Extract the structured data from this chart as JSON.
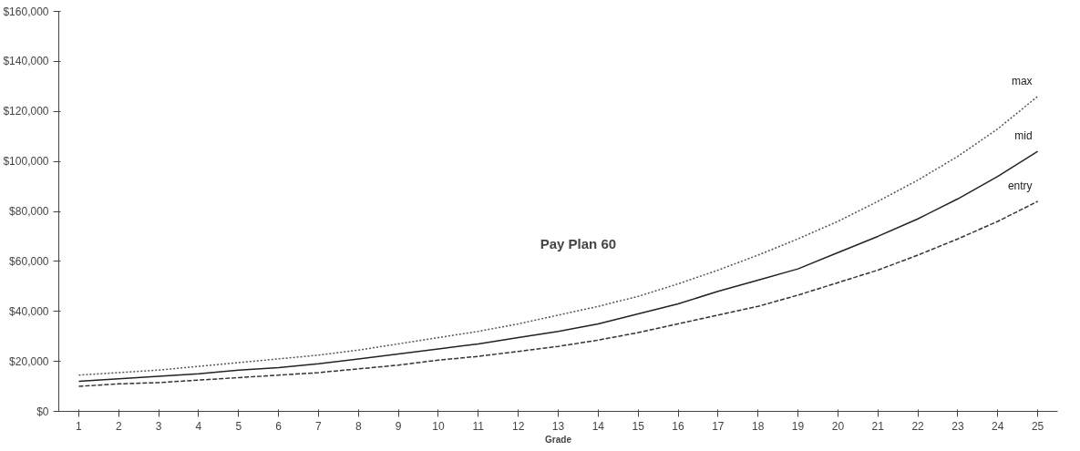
{
  "chart_data": {
    "type": "line",
    "xlabel": "Grade",
    "annotations": [
      "Pay Plan 60"
    ],
    "x": [
      1,
      2,
      3,
      4,
      5,
      6,
      7,
      8,
      9,
      10,
      11,
      12,
      13,
      14,
      15,
      16,
      17,
      18,
      19,
      20,
      21,
      22,
      23,
      24,
      25
    ],
    "xlim": [
      0.5,
      25.5
    ],
    "xticks": [
      1,
      2,
      3,
      4,
      5,
      6,
      7,
      8,
      9,
      10,
      11,
      12,
      13,
      14,
      15,
      16,
      17,
      18,
      19,
      20,
      21,
      22,
      23,
      24,
      25
    ],
    "series": [
      {
        "name": "max",
        "color": "#555555",
        "line_style": "dotted",
        "values": [
          14500,
          15500,
          16500,
          18000,
          19500,
          21000,
          22500,
          24500,
          27000,
          29500,
          32000,
          35000,
          38500,
          42000,
          46000,
          51000,
          56500,
          62500,
          69000,
          76000,
          84000,
          92500,
          102000,
          113000,
          126000
        ]
      },
      {
        "name": "mid",
        "color": "#222222",
        "line_style": "solid",
        "values": [
          12000,
          13000,
          14000,
          15000,
          16500,
          17500,
          19000,
          21000,
          23000,
          25000,
          27000,
          29500,
          32000,
          35000,
          39000,
          43000,
          48000,
          52500,
          57000,
          63500,
          70000,
          77000,
          85000,
          94000,
          104000
        ]
      },
      {
        "name": "entry",
        "color": "#333333",
        "line_style": "dashed",
        "values": [
          10000,
          11000,
          11500,
          12500,
          13500,
          14500,
          15500,
          17000,
          18500,
          20500,
          22000,
          24000,
          26000,
          28500,
          31500,
          35000,
          38500,
          42000,
          46500,
          51500,
          56500,
          62500,
          69000,
          76000,
          84000
        ]
      }
    ],
    "ylim": [
      0,
      160000
    ],
    "yticks": [
      {
        "value": 0,
        "label": "$0"
      },
      {
        "value": 20000,
        "label": "$20,000"
      },
      {
        "value": 40000,
        "label": "$40,000"
      },
      {
        "value": 60000,
        "label": "$60,000"
      },
      {
        "value": 80000,
        "label": "$80,000"
      },
      {
        "value": 100000,
        "label": "$100,000"
      },
      {
        "value": 120000,
        "label": "$120,000"
      },
      {
        "value": 140000,
        "label": "$140,000"
      },
      {
        "value": 160000,
        "label": "$160,000"
      }
    ],
    "grid": false,
    "marker": "none"
  }
}
